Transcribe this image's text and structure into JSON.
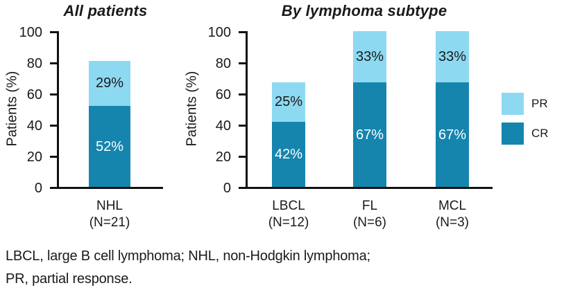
{
  "chart_data": [
    {
      "type": "bar",
      "stacked": true,
      "title": "All patients",
      "ylabel": "Patients (%)",
      "xlabel": "",
      "ylim": [
        0,
        100
      ],
      "yticks": [
        0,
        20,
        40,
        60,
        80,
        100
      ],
      "grid": false,
      "categories": [
        "NHL"
      ],
      "category_sublabels": [
        "(N=21)"
      ],
      "series": [
        {
          "name": "CR",
          "color": "#1585AE",
          "label_color": "#ffffff",
          "values": [
            52
          ],
          "labels": [
            "52%"
          ]
        },
        {
          "name": "PR",
          "color": "#8ED9F2",
          "label_color": "#1a1a1a",
          "values": [
            29
          ],
          "labels": [
            "29%"
          ]
        }
      ]
    },
    {
      "type": "bar",
      "stacked": true,
      "title": "By lymphoma subtype",
      "ylabel": "Patients (%)",
      "xlabel": "",
      "ylim": [
        0,
        100
      ],
      "yticks": [
        0,
        20,
        40,
        60,
        80,
        100
      ],
      "grid": false,
      "categories": [
        "LBCL",
        "FL",
        "MCL"
      ],
      "category_sublabels": [
        "(N=12)",
        "(N=6)",
        "(N=3)"
      ],
      "series": [
        {
          "name": "CR",
          "color": "#1585AE",
          "label_color": "#ffffff",
          "values": [
            42,
            67,
            67
          ],
          "labels": [
            "42%",
            "67%",
            "67%"
          ]
        },
        {
          "name": "PR",
          "color": "#8ED9F2",
          "label_color": "#1a1a1a",
          "values": [
            25,
            33,
            33
          ],
          "labels": [
            "25%",
            "33%",
            "33%"
          ]
        }
      ]
    }
  ],
  "legend": {
    "position": "right",
    "items": [
      {
        "label": "PR",
        "color": "#8ED9F2"
      },
      {
        "label": "CR",
        "color": "#1585AE"
      }
    ]
  },
  "footnote": "LBCL, large B cell lymphoma; NHL, non-Hodgkin lymphoma; PR, partial response.",
  "colors": {
    "pr": "#8ED9F2",
    "cr": "#1585AE",
    "axis": "#111111",
    "text": "#1a1a1a"
  }
}
